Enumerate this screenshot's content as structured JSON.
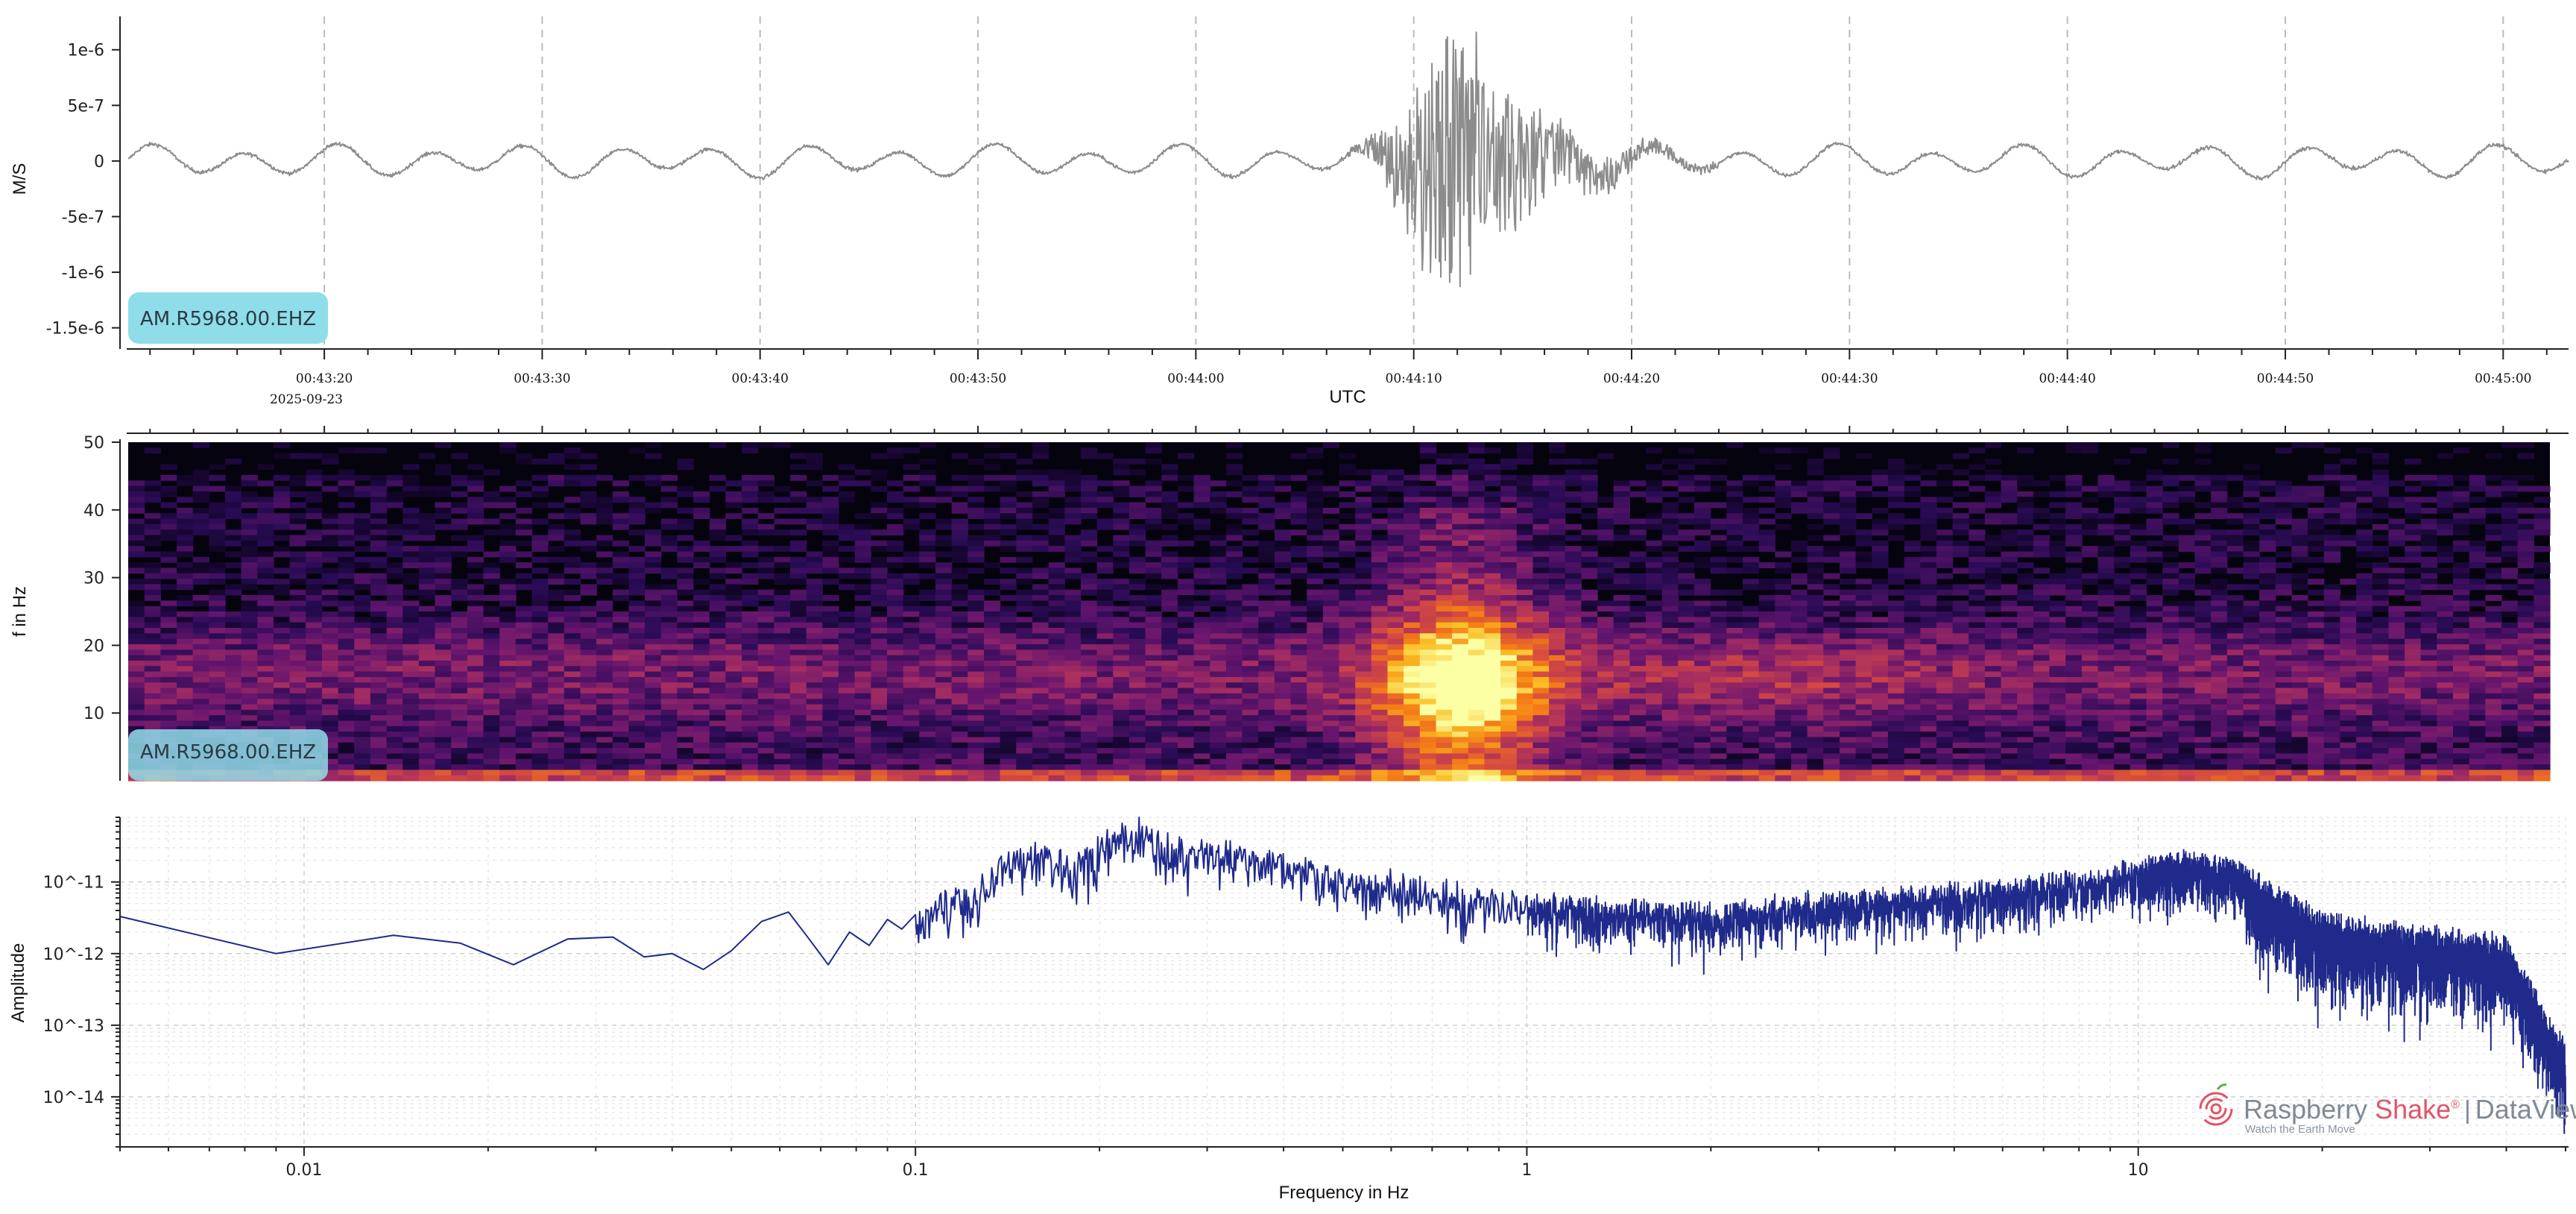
{
  "colors": {
    "waveform": "#8c8c8c",
    "spectrum_line": "#1f2a8a",
    "badge": "#8fdde9",
    "logo_red": "#e0556a",
    "logo_gray": "#7f8a96"
  },
  "chart_data": [
    {
      "type": "line",
      "panel": "waveform",
      "ylabel": "M/S",
      "xlabel": "UTC",
      "badge": "AM.R5968.00.EHZ",
      "yticks": [
        "1e-6",
        "5e-7",
        "0",
        "-5e-7",
        "-1e-6",
        "-1.5e-6"
      ],
      "ytick_values": [
        1e-06,
        5e-07,
        0,
        -5e-07,
        -1e-06,
        -1.5e-06
      ],
      "ylim": [
        -1.65e-06,
        1.3e-06
      ],
      "xlim_seconds": [
        -9,
        103
      ],
      "xticks": [
        "00:43:20",
        "00:43:30",
        "00:43:40",
        "00:43:50",
        "00:44:00",
        "00:44:10",
        "00:44:20",
        "00:44:30",
        "00:44:40",
        "00:44:50",
        "00:45:00"
      ],
      "xtick_seconds": [
        0,
        10,
        20,
        30,
        40,
        50,
        60,
        70,
        80,
        90,
        100
      ],
      "date_label": "2025-09-23",
      "series": [
        {
          "values_summary": "background microseism oscillation ~±1.5e-7, burst near 00:44:10 reaching ~±1.3e-6"
        }
      ]
    },
    {
      "type": "heatmap",
      "panel": "spectrogram",
      "ylabel": "f in Hz",
      "badge": "AM.R5968.00.EHZ",
      "yticks": [
        "50",
        "40",
        "30",
        "20",
        "10"
      ],
      "ytick_values": [
        50,
        40,
        30,
        20,
        10
      ],
      "ylim": [
        0,
        50
      ]
    },
    {
      "type": "line",
      "panel": "spectrum",
      "ylabel": "Amplitude",
      "xlabel": "Frequency in Hz",
      "xscale": "log",
      "yscale": "log",
      "xticks": [
        "0.01",
        "0.1",
        "1",
        "10"
      ],
      "xtick_values": [
        0.01,
        0.1,
        1,
        10
      ],
      "yticks": [
        "10^-11",
        "10^-12",
        "10^-13",
        "10^-14"
      ],
      "ytick_values": [
        1e-11,
        1e-12,
        1e-13,
        1e-14
      ],
      "xlim": [
        0.005,
        50
      ],
      "ylim": [
        2e-15,
        8e-11
      ],
      "series": [
        {
          "anchors_x": [
            0.005,
            0.009,
            0.014,
            0.018,
            0.022,
            0.027,
            0.032,
            0.036,
            0.04,
            0.045,
            0.05,
            0.056,
            0.062,
            0.067,
            0.072,
            0.078,
            0.084,
            0.09,
            0.095,
            0.1,
            0.11,
            0.125,
            0.14,
            0.16,
            0.18,
            0.2,
            0.23,
            0.26,
            0.3,
            0.35,
            0.4,
            0.5,
            0.6,
            0.7,
            0.85,
            1.0,
            1.5,
            2.0,
            3.0,
            5.0,
            8.0,
            12.0,
            15.0,
            20.0,
            30.0,
            40.0,
            50.0
          ],
          "anchors_y": [
            3.3e-12,
            1e-12,
            1.8e-12,
            1.4e-12,
            7e-13,
            1.6e-12,
            1.7e-12,
            9e-13,
            1e-12,
            6e-13,
            1.1e-12,
            2.8e-12,
            3.8e-12,
            1.6e-12,
            7e-13,
            2e-12,
            1.3e-12,
            3e-12,
            2.2e-12,
            3.5e-12,
            7e-12,
            9e-12,
            2.5e-11,
            3.5e-11,
            2.5e-11,
            4.5e-11,
            7e-11,
            4e-11,
            3.5e-11,
            3e-11,
            2.5e-11,
            1.4e-11,
            1.2e-11,
            9e-12,
            7e-12,
            6e-12,
            5e-12,
            4.5e-12,
            6e-12,
            8e-12,
            1.2e-11,
            2.2e-11,
            1.5e-11,
            3e-12,
            2e-12,
            1.5e-12,
            5e-14
          ]
        }
      ]
    }
  ],
  "watermark": {
    "brand_first": "Raspberry",
    "brand_second": "Shake",
    "registered": "®",
    "separator": "|",
    "product": "DataView",
    "tagline": "Watch the Earth Move"
  }
}
